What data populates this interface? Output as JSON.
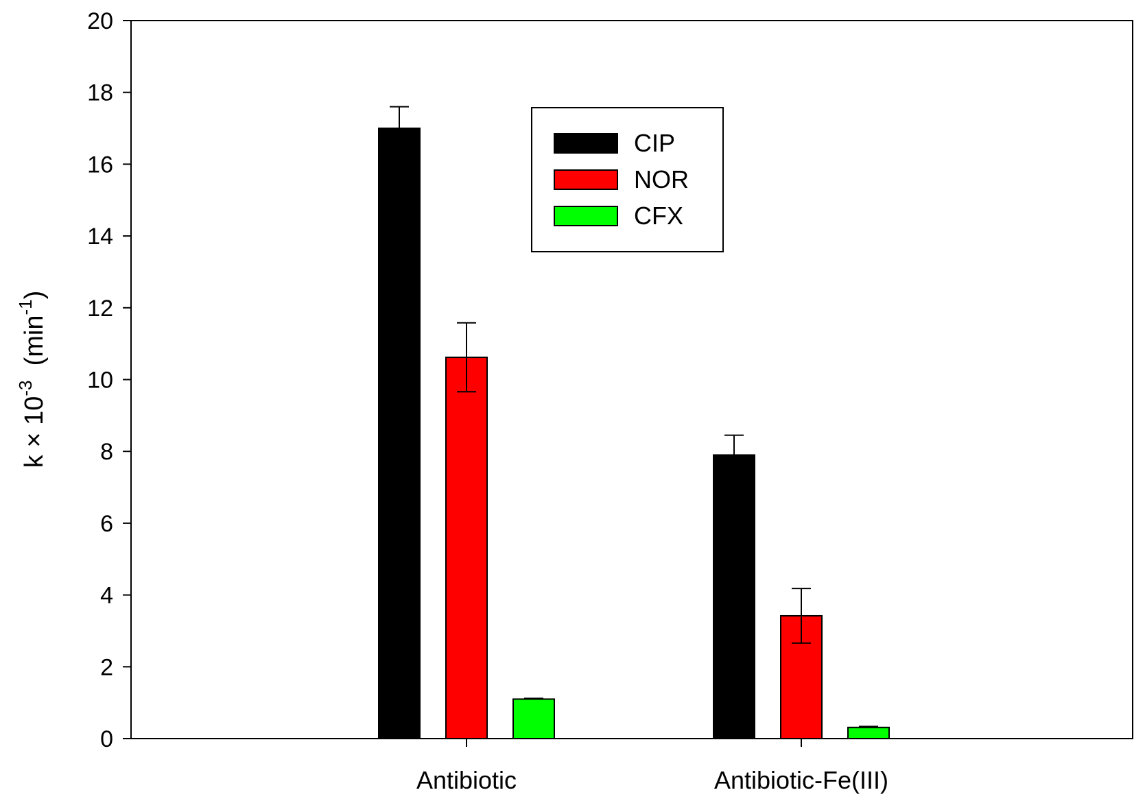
{
  "chart_data": {
    "type": "bar",
    "categories": [
      "Antibiotic",
      "Antibiotic-Fe(III)"
    ],
    "series": [
      {
        "name": "CIP",
        "color": "#000000",
        "values": [
          17.0,
          7.9
        ],
        "error_upper": [
          17.6,
          8.45
        ],
        "error_lower": [
          null,
          null
        ]
      },
      {
        "name": "NOR",
        "color": "#ff0000",
        "values": [
          10.62,
          3.42
        ],
        "error_upper": [
          11.58,
          4.18
        ],
        "error_lower": [
          9.66,
          2.66
        ]
      },
      {
        "name": "CFX",
        "color": "#00ff00",
        "values": [
          1.1,
          0.31
        ],
        "error_upper": [
          1.12,
          0.34
        ],
        "error_lower": [
          null,
          null
        ]
      }
    ],
    "ylabel": {
      "base": "k × 10",
      "exp": "-3",
      "unit_open": "  (min",
      "unit_exp": "-1",
      "unit_close": ")"
    },
    "xlabel": "",
    "ylim": [
      0,
      20
    ],
    "yticks": [
      "0",
      "2",
      "4",
      "6",
      "8",
      "10",
      "12",
      "14",
      "16",
      "18",
      "20"
    ],
    "legend_position": "top-center",
    "grid": false
  }
}
